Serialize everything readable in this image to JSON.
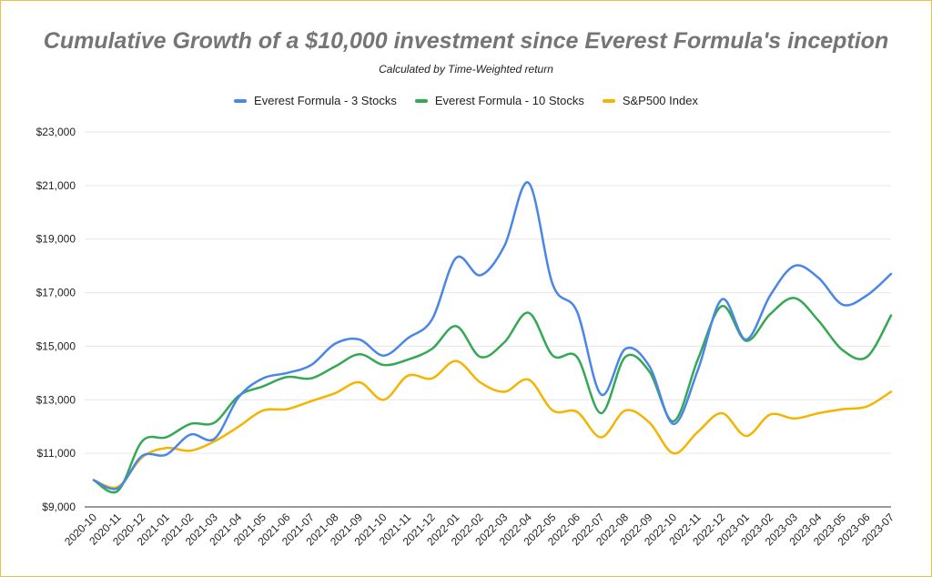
{
  "chart_data": {
    "type": "line",
    "title": "Cumulative Growth of a $10,000 investment since Everest Formula's inception",
    "subtitle": "Calculated by Time-Weighted return",
    "legend_position": "top",
    "grid": true,
    "ylim": [
      9000,
      23000
    ],
    "y_ticks": [
      9000,
      11000,
      13000,
      15000,
      17000,
      19000,
      21000,
      23000
    ],
    "y_tick_labels": [
      "$9,000",
      "$11,000",
      "$13,000",
      "$15,000",
      "$17,000",
      "$19,000",
      "$21,000",
      "$23,000"
    ],
    "x": [
      "2020-10",
      "2020-11",
      "2020-12",
      "2021-01",
      "2021-02",
      "2021-03",
      "2021-04",
      "2021-05",
      "2021-06",
      "2021-07",
      "2021-08",
      "2021-09",
      "2021-10",
      "2021-11",
      "2021-12",
      "2022-01",
      "2022-02",
      "2022-03",
      "2022-04",
      "2022-05",
      "2022-06",
      "2022-07",
      "2022-08",
      "2022-09",
      "2022-10",
      "2022-11",
      "2022-12",
      "2023-01",
      "2023-02",
      "2023-03",
      "2023-04",
      "2023-05",
      "2023-06",
      "2023-07"
    ],
    "series": [
      {
        "name": "Everest Formula - 3 Stocks",
        "color": "#4a86e8",
        "values": [
          10000,
          9700,
          10900,
          10950,
          11700,
          11550,
          13100,
          13800,
          14000,
          14300,
          15100,
          15250,
          14650,
          15300,
          16000,
          18300,
          17650,
          18750,
          21100,
          17300,
          16300,
          13200,
          14900,
          14250,
          12100,
          14100,
          16750,
          15250,
          16900,
          18000,
          17550,
          16550,
          16900,
          17700
        ]
      },
      {
        "name": "Everest Formula - 10 Stocks",
        "color": "#34a853",
        "values": [
          10000,
          9600,
          11450,
          11600,
          12100,
          12150,
          13150,
          13500,
          13850,
          13800,
          14250,
          14700,
          14300,
          14500,
          14900,
          15750,
          14600,
          15150,
          16250,
          14650,
          14600,
          12500,
          14600,
          14050,
          12200,
          14500,
          16500,
          15200,
          16200,
          16800,
          15950,
          14850,
          14600,
          16150
        ]
      },
      {
        "name": "S&P500 Index",
        "color": "#f4b400",
        "values": [
          10000,
          9750,
          10850,
          11200,
          11100,
          11450,
          12000,
          12600,
          12650,
          12950,
          13250,
          13650,
          13000,
          13900,
          13800,
          14450,
          13650,
          13300,
          13750,
          12600,
          12550,
          11600,
          12600,
          12150,
          11000,
          11800,
          12500,
          11650,
          12450,
          12300,
          12500,
          12650,
          12750,
          13300
        ]
      }
    ]
  }
}
